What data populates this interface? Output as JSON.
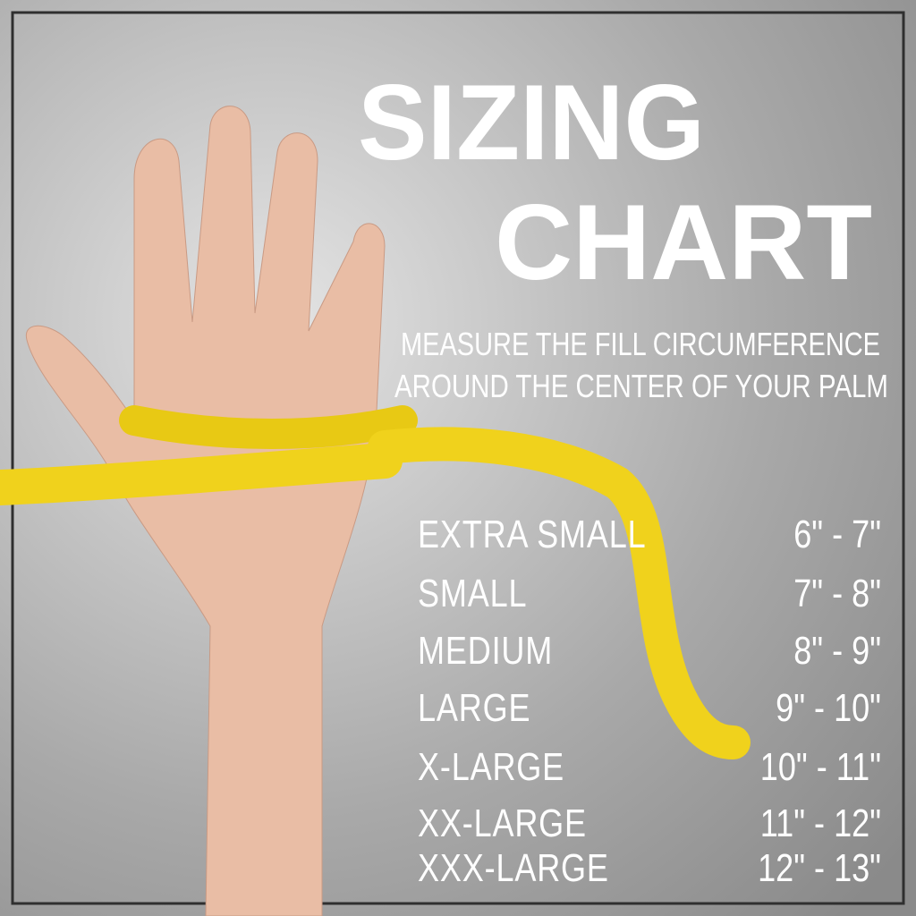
{
  "title": [
    "SIZING",
    "CHART"
  ],
  "subtitle": [
    "MEASURE THE FILL CIRCUMFERENCE",
    "AROUND THE CENTER OF YOUR PALM"
  ],
  "rows": [
    [
      "EXTRA SMALL",
      "6\" - 7\""
    ],
    [
      "SMALL",
      "7\" - 8\""
    ],
    [
      "MEDIUM",
      "8\" - 9\""
    ],
    [
      "LARGE",
      "9\" - 10\""
    ],
    [
      "X-LARGE",
      "10\" - 11\""
    ],
    [
      "XX-LARGE",
      "11\" - 12\""
    ],
    [
      "XXX-LARGE",
      "12\" - 13\""
    ]
  ]
}
